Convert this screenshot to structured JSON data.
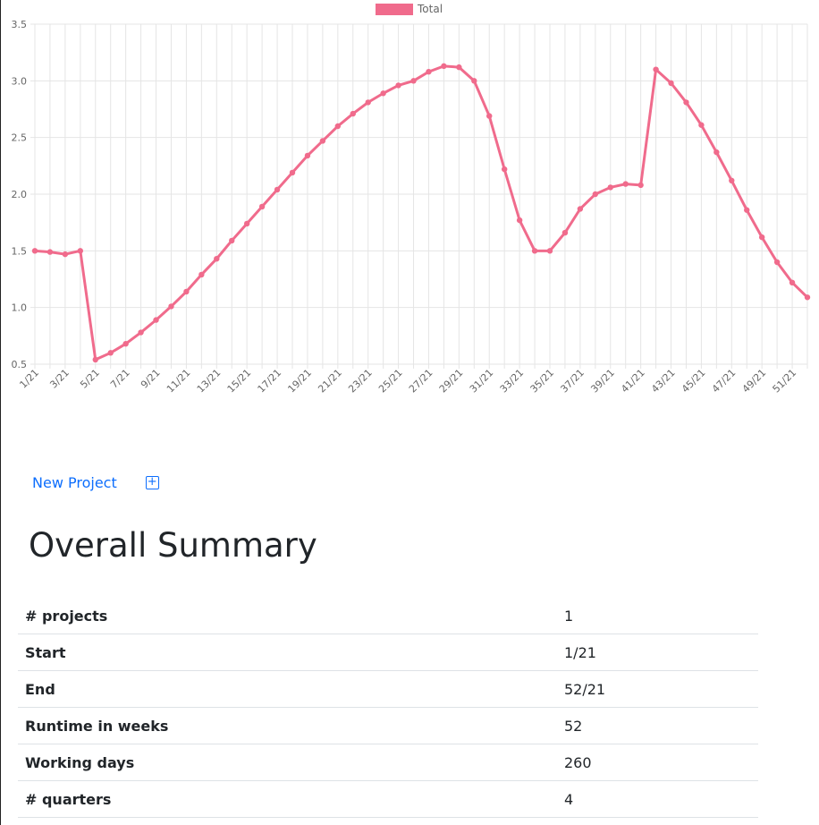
{
  "chart_data": {
    "type": "line",
    "legend": {
      "label": "Total",
      "position": "top"
    },
    "series": [
      {
        "name": "Total",
        "color": "#f06b8c",
        "values": [
          1.5,
          1.49,
          1.47,
          1.5,
          0.54,
          0.6,
          0.68,
          0.78,
          0.89,
          1.01,
          1.14,
          1.29,
          1.43,
          1.59,
          1.74,
          1.89,
          2.04,
          2.19,
          2.34,
          2.47,
          2.6,
          2.71,
          2.81,
          2.89,
          2.96,
          3.0,
          3.08,
          3.13,
          3.12,
          3.0,
          2.69,
          2.22,
          1.77,
          1.5,
          1.5,
          1.66,
          1.87,
          2.0,
          2.06,
          2.09,
          2.08,
          3.1,
          2.98,
          2.81,
          2.61,
          2.37,
          2.12,
          1.86,
          1.62,
          1.4,
          1.22,
          1.09
        ]
      }
    ],
    "tick_labels": [
      "1/21",
      "3/21",
      "5/21",
      "7/21",
      "9/21",
      "11/21",
      "13/21",
      "15/21",
      "17/21",
      "19/21",
      "21/21",
      "23/21",
      "25/21",
      "27/21",
      "29/21",
      "31/21",
      "33/21",
      "35/21",
      "37/21",
      "39/21",
      "41/21",
      "43/21",
      "45/21",
      "47/21",
      "49/21",
      "51/21"
    ],
    "y_ticks": [
      "0.5",
      "1.0",
      "1.5",
      "2.0",
      "2.5",
      "3.0",
      "3.5"
    ],
    "ylim": [
      0.5,
      3.5
    ],
    "grid": true
  },
  "toolbar": {
    "new_project_label": "New Project",
    "add_icon": "plus-square-icon"
  },
  "summary": {
    "title": "Overall Summary",
    "rows": [
      {
        "label": "# projects",
        "value": "1"
      },
      {
        "label": "Start",
        "value": "1/21"
      },
      {
        "label": "End",
        "value": "52/21"
      },
      {
        "label": "Runtime in weeks",
        "value": "52"
      },
      {
        "label": "Working days",
        "value": "260"
      },
      {
        "label": "# quarters",
        "value": "4"
      }
    ]
  }
}
